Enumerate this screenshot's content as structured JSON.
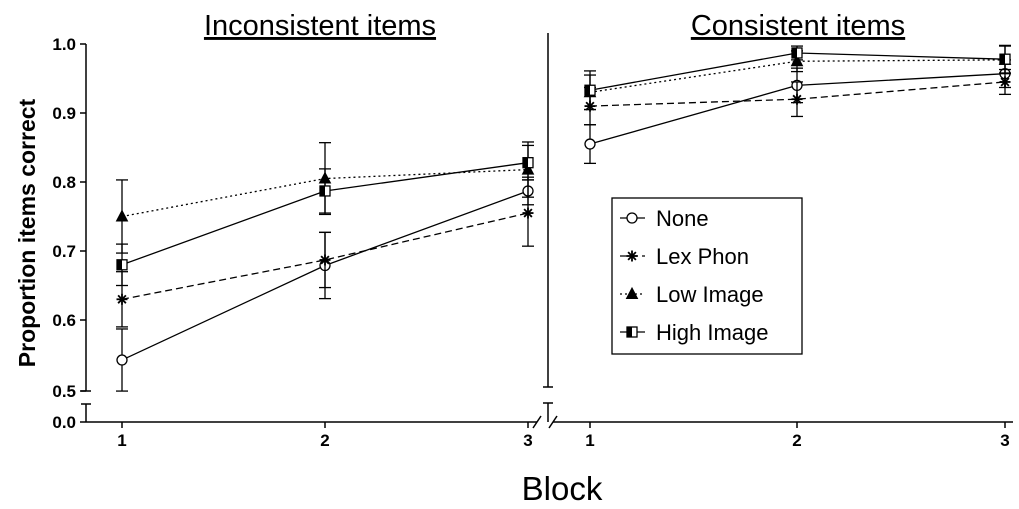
{
  "chart_data": {
    "type": "line",
    "ylabel": "Proportion items correct",
    "xlabel": "Block",
    "y_ticks": [
      "0.0",
      "0.5",
      "0.6",
      "0.7",
      "0.8",
      "0.9",
      "1.0"
    ],
    "y_axis_break": true,
    "grid": false,
    "legend_position": "center-right of the Consistent items panel",
    "categories": [
      1,
      2,
      3
    ],
    "series_names": [
      "None",
      "Lex Phon",
      "Low Image",
      "High Image"
    ],
    "panels": [
      {
        "title": "Inconsistent items",
        "series": [
          {
            "name": "None",
            "marker": "open-circle",
            "line": "solid",
            "values": [
              0.542,
              0.679,
              0.787
            ],
            "error": [
              0.045,
              0.048,
              0.02
            ]
          },
          {
            "name": "Lex Phon",
            "marker": "asterisk",
            "line": "dashed",
            "values": [
              0.63,
              0.687,
              0.755
            ],
            "error": [
              0.04,
              0.04,
              0.048
            ]
          },
          {
            "name": "Low Image",
            "marker": "filled-triangle",
            "line": "dotted",
            "values": [
              0.75,
              0.805,
              0.818
            ],
            "error": [
              0.053,
              0.052,
              0.04
            ]
          },
          {
            "name": "High Image",
            "marker": "half-filled-square",
            "line": "solid",
            "values": [
              0.68,
              0.787,
              0.828
            ],
            "error": [
              0.03,
              0.032,
              0.025
            ]
          }
        ]
      },
      {
        "title": "Consistent items",
        "series": [
          {
            "name": "None",
            "marker": "open-circle",
            "line": "solid",
            "values": [
              0.855,
              0.94,
              0.957
            ],
            "error": [
              0.028,
              0.025,
              0.02
            ]
          },
          {
            "name": "Lex Phon",
            "marker": "asterisk",
            "line": "dashed",
            "values": [
              0.91,
              0.92,
              0.945
            ],
            "error": [
              0.027,
              0.025,
              0.018
            ]
          },
          {
            "name": "Low Image",
            "marker": "filled-triangle",
            "line": "dotted",
            "values": [
              0.93,
              0.975,
              0.977
            ],
            "error": [
              0.025,
              0.015,
              0.02
            ]
          },
          {
            "name": "High Image",
            "marker": "half-filled-square",
            "line": "solid",
            "values": [
              0.933,
              0.987,
              0.978
            ],
            "error": [
              0.028,
              0.01,
              0.02
            ]
          }
        ]
      }
    ]
  }
}
